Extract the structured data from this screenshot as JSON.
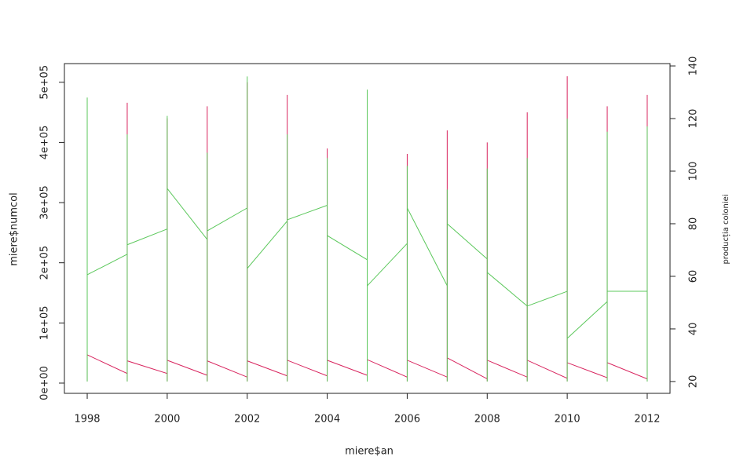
{
  "chart_data": {
    "type": "line",
    "x_label": "miere$an",
    "y_label": "miere$numcol",
    "y2_label": "producția coloniei",
    "xlim": [
      1997.43,
      2012.57
    ],
    "xticks": [
      1998,
      2000,
      2002,
      2004,
      2006,
      2008,
      2010,
      2012
    ],
    "ylim": [
      -17000,
      531000
    ],
    "yticks": [
      {
        "value": 0,
        "label": "0e+00"
      },
      {
        "value": 100000,
        "label": "1e+05"
      },
      {
        "value": 200000,
        "label": "2e+05"
      },
      {
        "value": 300000,
        "label": "3e+05"
      },
      {
        "value": 400000,
        "label": "4e+05"
      },
      {
        "value": 500000,
        "label": "5e+05"
      }
    ],
    "y2lim": [
      15.5,
      140.9
    ],
    "y2ticks": [
      20,
      40,
      60,
      80,
      100,
      120,
      140
    ],
    "series": [
      {
        "color": "#d8245e",
        "x": [
          1998,
          1998,
          1999,
          1999,
          1999,
          1999,
          2000,
          2000,
          2000,
          2000,
          2001,
          2001,
          2001,
          2001,
          2002,
          2002,
          2002,
          2002,
          2003,
          2003,
          2003,
          2003,
          2004,
          2004,
          2004,
          2004,
          2005,
          2005,
          2005,
          2005,
          2006,
          2006,
          2006,
          2006,
          2007,
          2007,
          2007,
          2007,
          2008,
          2008,
          2008,
          2008,
          2009,
          2009,
          2009,
          2009,
          2010,
          2010,
          2010,
          2010,
          2011,
          2011,
          2011,
          2011,
          2012,
          2012,
          2012
        ],
        "values": [
          3000,
          47000,
          16000,
          466000,
          3000,
          37000,
          16000,
          440000,
          3000,
          38000,
          13000,
          460000,
          3000,
          37000,
          10000,
          500000,
          3000,
          37000,
          12000,
          479000,
          3000,
          38000,
          12000,
          390000,
          3000,
          38000,
          13000,
          480000,
          3000,
          39000,
          10000,
          381000,
          3000,
          38000,
          10000,
          420000,
          3000,
          42000,
          7000,
          400000,
          3000,
          38000,
          10000,
          450000,
          3000,
          38000,
          8000,
          510000,
          3000,
          34000,
          9000,
          460000,
          3000,
          34000,
          7000,
          479000,
          3000
        ]
      },
      {
        "color": "#5cc85c",
        "axis": "y2",
        "x": [
          1998,
          1998,
          1998,
          1999,
          1999,
          1999,
          1999,
          2000,
          2000,
          2000,
          2000,
          2001,
          2001,
          2001,
          2001,
          2002,
          2002,
          2002,
          2002,
          2003,
          2003,
          2003,
          2003,
          2004,
          2004,
          2004,
          2004,
          2005,
          2005,
          2005,
          2005,
          2006,
          2006,
          2006,
          2006,
          2007,
          2007,
          2007,
          2007,
          2008,
          2008,
          2008,
          2008,
          2009,
          2009,
          2009,
          2009,
          2010,
          2010,
          2010,
          2010,
          2011,
          2011,
          2011,
          2011,
          2012,
          2012,
          2012
        ],
        "values": [
          20,
          128,
          60.6,
          68.4,
          114,
          20,
          72,
          78,
          121,
          20,
          93.4,
          74,
          107,
          20,
          77.3,
          86,
          136,
          20,
          63,
          81,
          114,
          20,
          81.5,
          87,
          105,
          20,
          75.5,
          66.3,
          131,
          20,
          56.4,
          72.5,
          102,
          20,
          86,
          56.4,
          93,
          20,
          80,
          66.6,
          101,
          20,
          61.5,
          48.7,
          105,
          20,
          48.7,
          54.3,
          120,
          20,
          36.4,
          50.4,
          115,
          20,
          54.3,
          54.3,
          117,
          20
        ]
      }
    ]
  }
}
